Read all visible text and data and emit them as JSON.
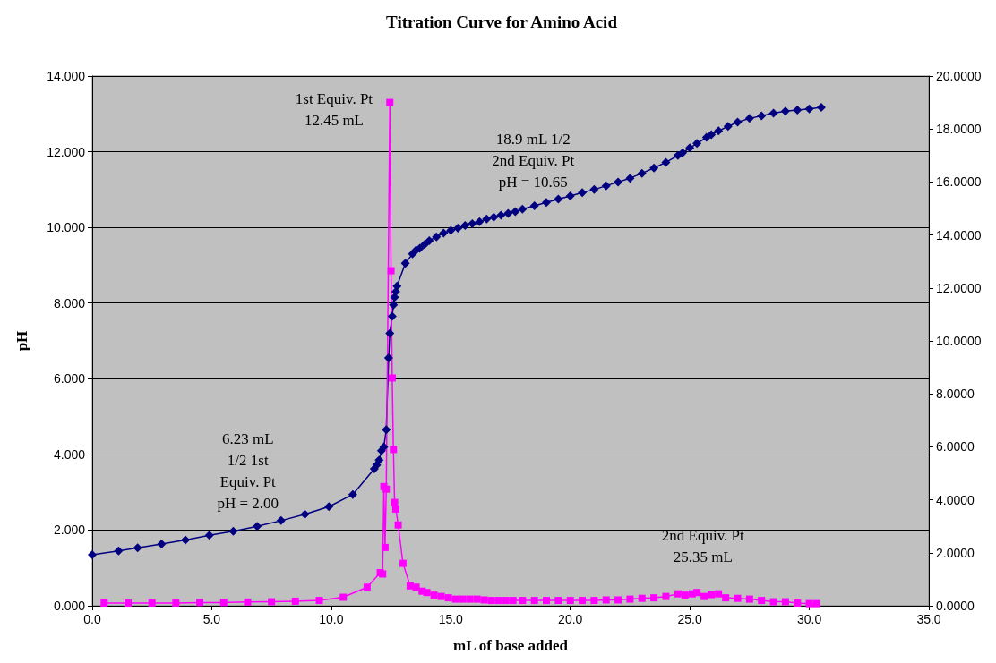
{
  "chart_data": {
    "type": "line",
    "title": "Titration Curve for Amino Acid",
    "xlabel": "mL of base added",
    "ylabel": "pH",
    "xlim": [
      0,
      35
    ],
    "xticks": [
      {
        "value": 0,
        "label": "0.0"
      },
      {
        "value": 5,
        "label": "5.0"
      },
      {
        "value": 10,
        "label": "10.0"
      },
      {
        "value": 15,
        "label": "15.0"
      },
      {
        "value": 20,
        "label": "20.0"
      },
      {
        "value": 25,
        "label": "25.0"
      },
      {
        "value": 30,
        "label": "30.0"
      },
      {
        "value": 35,
        "label": "35.0"
      }
    ],
    "ylim": [
      0,
      14
    ],
    "yticks": [
      {
        "value": 0,
        "label": "0.000"
      },
      {
        "value": 2,
        "label": "2.000"
      },
      {
        "value": 4,
        "label": "4.000"
      },
      {
        "value": 6,
        "label": "6.000"
      },
      {
        "value": 8,
        "label": "8.000"
      },
      {
        "value": 10,
        "label": "10.000"
      },
      {
        "value": 12,
        "label": "12.000"
      },
      {
        "value": 14,
        "label": "14.000"
      }
    ],
    "y2lim": [
      0,
      20
    ],
    "y2ticks": [
      {
        "value": 0,
        "label": "0.0000"
      },
      {
        "value": 2,
        "label": "2.0000"
      },
      {
        "value": 4,
        "label": "4.0000"
      },
      {
        "value": 6,
        "label": "6.0000"
      },
      {
        "value": 8,
        "label": "8.0000"
      },
      {
        "value": 10,
        "label": "10.0000"
      },
      {
        "value": 12,
        "label": "12.0000"
      },
      {
        "value": 14,
        "label": "14.0000"
      },
      {
        "value": 16,
        "label": "16.0000"
      },
      {
        "value": 18,
        "label": "18.0000"
      },
      {
        "value": 20,
        "label": "20.0000"
      }
    ],
    "grid": "y",
    "line_style": "solid",
    "series": [
      {
        "color": "#000080",
        "marker": "diamond",
        "x": [
          0,
          1.1,
          1.9,
          2.9,
          3.9,
          4.9,
          5.9,
          6.9,
          7.9,
          8.9,
          9.9,
          10.9,
          11.8,
          11.9,
          12.0,
          12.1,
          12.2,
          12.3,
          12.4,
          12.45,
          12.55,
          12.6,
          12.65,
          12.7,
          12.75,
          13.1,
          13.4,
          13.55,
          13.7,
          13.9,
          14.1,
          14.4,
          14.7,
          15.0,
          15.3,
          15.6,
          15.9,
          16.2,
          16.5,
          16.8,
          17.1,
          17.4,
          17.7,
          18.0,
          18.5,
          19.0,
          19.5,
          20.0,
          20.5,
          21.0,
          21.5,
          22.0,
          22.5,
          23.0,
          23.5,
          24.0,
          24.5,
          24.7,
          25.0,
          25.3,
          25.7,
          25.9,
          26.2,
          26.6,
          27.0,
          27.5,
          28.0,
          28.5,
          29.0,
          29.5,
          30.0,
          30.5
        ],
        "values": [
          1.35,
          1.45,
          1.53,
          1.63,
          1.74,
          1.86,
          1.97,
          2.1,
          2.25,
          2.42,
          2.62,
          2.94,
          3.62,
          3.72,
          3.85,
          4.1,
          4.2,
          4.65,
          6.55,
          7.2,
          7.65,
          7.95,
          8.15,
          8.3,
          8.45,
          9.05,
          9.3,
          9.4,
          9.45,
          9.55,
          9.65,
          9.75,
          9.85,
          9.92,
          9.98,
          10.05,
          10.1,
          10.15,
          10.22,
          10.27,
          10.32,
          10.37,
          10.42,
          10.48,
          10.57,
          10.66,
          10.75,
          10.83,
          10.92,
          11.0,
          11.1,
          11.2,
          11.3,
          11.43,
          11.57,
          11.72,
          11.9,
          11.97,
          12.1,
          12.22,
          12.38,
          12.45,
          12.55,
          12.67,
          12.78,
          12.88,
          12.95,
          13.02,
          13.07,
          13.1,
          13.13,
          13.17
        ]
      },
      {
        "color": "#ff00ff",
        "marker": "square",
        "axis": "y2",
        "x": [
          0.5,
          1.5,
          2.5,
          3.5,
          4.5,
          5.5,
          6.5,
          7.5,
          8.5,
          9.5,
          10.5,
          11.5,
          12.05,
          12.15,
          12.2,
          12.25,
          12.3,
          12.45,
          12.5,
          12.55,
          12.6,
          12.65,
          12.7,
          12.8,
          13.0,
          13.3,
          13.55,
          13.8,
          14.0,
          14.3,
          14.6,
          14.9,
          15.2,
          15.5,
          15.8,
          16.1,
          16.4,
          16.7,
          17.0,
          17.3,
          17.6,
          18.0,
          18.5,
          19.0,
          19.5,
          20.0,
          20.5,
          21.0,
          21.5,
          22.0,
          22.5,
          23.0,
          23.5,
          24.0,
          24.5,
          24.8,
          25.1,
          25.3,
          25.6,
          25.9,
          26.2,
          26.5,
          27.0,
          27.5,
          28.0,
          28.5,
          29.0,
          29.5,
          30.0,
          30.3
        ],
        "values": [
          0.1,
          0.1,
          0.1,
          0.1,
          0.12,
          0.12,
          0.14,
          0.15,
          0.17,
          0.2,
          0.32,
          0.7,
          1.25,
          1.2,
          4.5,
          2.2,
          4.4,
          19.0,
          12.65,
          8.6,
          5.9,
          3.9,
          3.65,
          3.05,
          1.6,
          0.75,
          0.7,
          0.55,
          0.5,
          0.4,
          0.35,
          0.3,
          0.25,
          0.25,
          0.25,
          0.25,
          0.22,
          0.2,
          0.2,
          0.2,
          0.2,
          0.2,
          0.2,
          0.2,
          0.2,
          0.2,
          0.2,
          0.2,
          0.22,
          0.22,
          0.25,
          0.28,
          0.3,
          0.35,
          0.45,
          0.4,
          0.45,
          0.5,
          0.35,
          0.42,
          0.45,
          0.3,
          0.28,
          0.25,
          0.2,
          0.15,
          0.15,
          0.1,
          0.08,
          0.08
        ]
      }
    ],
    "annotations": [
      "1st Equiv. Pt\n12.45 mL",
      "6.23 mL\n1/2 1st\nEquiv. Pt\npH = 2.00",
      "18.9 mL 1/2\n2nd Equiv. Pt\npH = 10.65",
      "2nd Equiv. Pt\n25.35 mL"
    ]
  }
}
